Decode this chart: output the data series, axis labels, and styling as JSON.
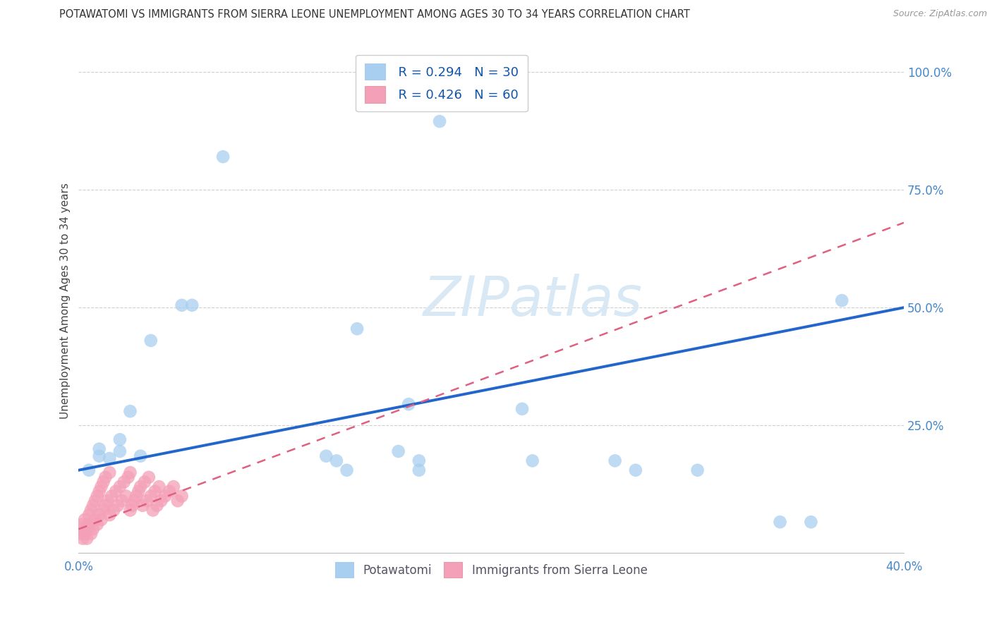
{
  "title": "POTAWATOMI VS IMMIGRANTS FROM SIERRA LEONE UNEMPLOYMENT AMONG AGES 30 TO 34 YEARS CORRELATION CHART",
  "source": "Source: ZipAtlas.com",
  "ylabel": "Unemployment Among Ages 30 to 34 years",
  "xlim": [
    0.0,
    0.4
  ],
  "ylim": [
    -0.02,
    1.05
  ],
  "xticks": [
    0.0,
    0.05,
    0.1,
    0.15,
    0.2,
    0.25,
    0.3,
    0.35,
    0.4
  ],
  "xticklabels": [
    "0.0%",
    "",
    "",
    "",
    "",
    "",
    "",
    "",
    "40.0%"
  ],
  "yticks_right": [
    0.0,
    0.25,
    0.5,
    0.75,
    1.0
  ],
  "yticklabels_right": [
    "",
    "25.0%",
    "50.0%",
    "75.0%",
    "100.0%"
  ],
  "grid_color": "#d0d0d0",
  "background_color": "#ffffff",
  "potawatomi_color": "#a8cff0",
  "sierra_leone_color": "#f4a0b8",
  "potawatomi_edge_color": "#80b8e8",
  "sierra_leone_edge_color": "#e87898",
  "potawatomi_line_color": "#2266cc",
  "sierra_leone_line_color": "#e06080",
  "watermark_color": "#d8e8f4",
  "watermark": "ZIPatlas",
  "potawatomi_line_x0": 0.0,
  "potawatomi_line_y0": 0.155,
  "potawatomi_line_x1": 0.4,
  "potawatomi_line_y1": 0.5,
  "sierra_line_x0": 0.0,
  "sierra_line_y0": 0.03,
  "sierra_line_x1": 0.4,
  "sierra_line_y1": 0.68,
  "potawatomi_x": [
    0.005,
    0.01,
    0.01,
    0.015,
    0.02,
    0.02,
    0.025,
    0.03,
    0.035,
    0.05,
    0.055,
    0.07,
    0.12,
    0.125,
    0.13,
    0.135,
    0.155,
    0.16,
    0.165,
    0.165,
    0.175,
    0.215,
    0.22,
    0.26,
    0.27,
    0.3,
    0.34,
    0.355,
    0.37
  ],
  "potawatomi_y": [
    0.155,
    0.185,
    0.2,
    0.18,
    0.195,
    0.22,
    0.28,
    0.185,
    0.43,
    0.505,
    0.505,
    0.82,
    0.185,
    0.175,
    0.155,
    0.455,
    0.195,
    0.295,
    0.155,
    0.175,
    0.895,
    0.285,
    0.175,
    0.175,
    0.155,
    0.155,
    0.045,
    0.045,
    0.515
  ],
  "sierra_leone_x": [
    0.001,
    0.001,
    0.002,
    0.002,
    0.003,
    0.003,
    0.004,
    0.004,
    0.005,
    0.005,
    0.006,
    0.006,
    0.007,
    0.007,
    0.008,
    0.008,
    0.009,
    0.009,
    0.01,
    0.01,
    0.011,
    0.011,
    0.012,
    0.012,
    0.013,
    0.013,
    0.014,
    0.015,
    0.015,
    0.016,
    0.017,
    0.018,
    0.019,
    0.02,
    0.021,
    0.022,
    0.023,
    0.024,
    0.025,
    0.025,
    0.026,
    0.027,
    0.028,
    0.029,
    0.03,
    0.031,
    0.032,
    0.033,
    0.034,
    0.035,
    0.036,
    0.037,
    0.038,
    0.039,
    0.04,
    0.042,
    0.044,
    0.046,
    0.048,
    0.05
  ],
  "sierra_leone_y": [
    0.02,
    0.03,
    0.01,
    0.04,
    0.02,
    0.05,
    0.01,
    0.03,
    0.04,
    0.06,
    0.02,
    0.07,
    0.03,
    0.08,
    0.05,
    0.09,
    0.04,
    0.1,
    0.06,
    0.11,
    0.05,
    0.12,
    0.07,
    0.13,
    0.08,
    0.14,
    0.09,
    0.06,
    0.15,
    0.1,
    0.07,
    0.11,
    0.08,
    0.12,
    0.09,
    0.13,
    0.1,
    0.14,
    0.07,
    0.15,
    0.08,
    0.09,
    0.1,
    0.11,
    0.12,
    0.08,
    0.13,
    0.09,
    0.14,
    0.1,
    0.07,
    0.11,
    0.08,
    0.12,
    0.09,
    0.1,
    0.11,
    0.12,
    0.09,
    0.1
  ]
}
